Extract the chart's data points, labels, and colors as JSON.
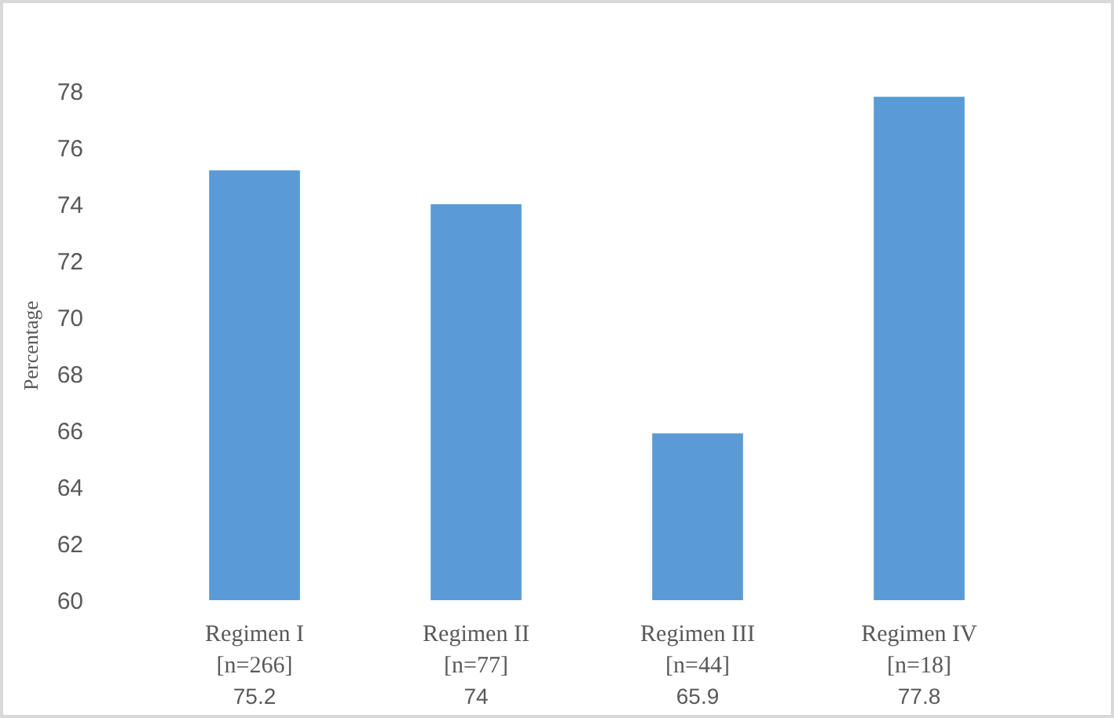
{
  "chart_data": {
    "type": "bar",
    "ylabel": "Percentage",
    "categories": [
      "Regimen I [n=266]",
      "Regimen II [n=77]",
      "Regimen III [n=44]",
      "Regimen IV [n=18]"
    ],
    "values": [
      75.2,
      74,
      65.9,
      77.8
    ],
    "color": "#5b9bd5",
    "data_labels": true,
    "ylim": [
      60,
      78
    ],
    "yticks": [
      60,
      62,
      64,
      66,
      68,
      70,
      72,
      74,
      76,
      78
    ]
  }
}
